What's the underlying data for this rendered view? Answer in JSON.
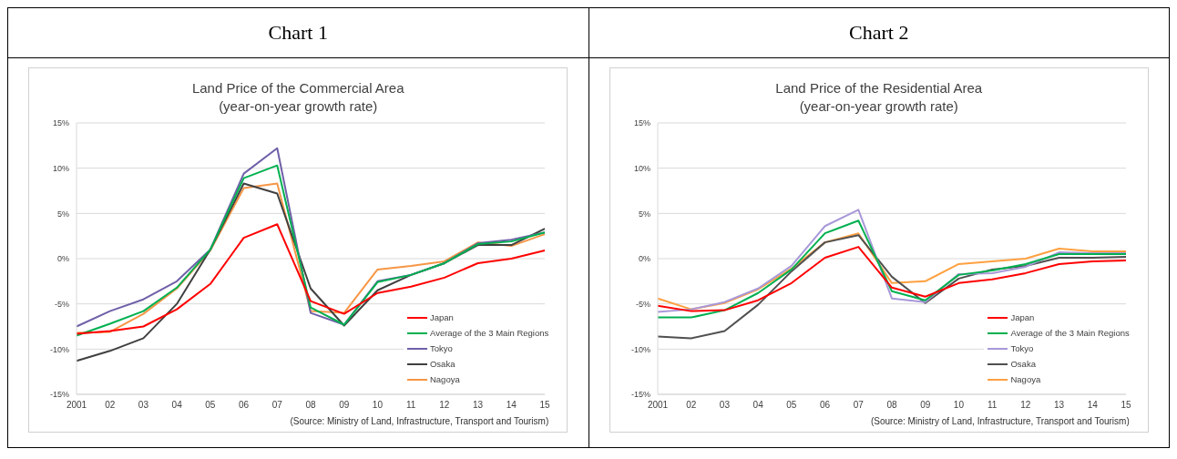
{
  "chart_data": [
    {
      "type": "line",
      "title": "Land Price of  the Commercial Area\n(year-on-year growth rate)",
      "annotations": [
        "Chart 1",
        "(Source: Ministry of Land, Infrastructure, Transport and Tourism)"
      ],
      "categories": [
        "2001",
        "02",
        "03",
        "04",
        "05",
        "06",
        "07",
        "08",
        "09",
        "10",
        "11",
        "12",
        "13",
        "14",
        "15"
      ],
      "series": [
        {
          "name": "Japan",
          "color": "#ff0000",
          "values": [
            -8.3,
            -8.0,
            -7.5,
            -5.6,
            -2.8,
            2.3,
            3.8,
            -4.7,
            -6.1,
            -3.8,
            -3.1,
            -2.1,
            -0.5,
            0.0,
            0.9
          ]
        },
        {
          "name": "Average of the 3 Main Regions",
          "color": "#00b050",
          "values": [
            -8.5,
            -7.2,
            -5.8,
            -3.2,
            1.0,
            8.9,
            10.3,
            -5.4,
            -7.3,
            -2.6,
            -1.8,
            -0.5,
            1.6,
            1.9,
            2.9
          ]
        },
        {
          "name": "Tokyo",
          "color": "#7060a8",
          "values": [
            -7.5,
            -5.8,
            -4.5,
            -2.5,
            1.0,
            9.4,
            12.2,
            -6.0,
            -7.3,
            -2.5,
            -1.8,
            -0.5,
            1.7,
            2.1,
            2.9
          ]
        },
        {
          "name": "Osaka",
          "color": "#404040",
          "values": [
            -11.3,
            -10.2,
            -8.8,
            -5.0,
            1.0,
            8.3,
            7.2,
            -3.3,
            -7.4,
            -3.5,
            -1.8,
            -0.5,
            1.5,
            1.5,
            3.3
          ]
        },
        {
          "name": "Nagoya",
          "color": "#f79646",
          "values": [
            -8.2,
            -8.1,
            -6.1,
            -3.3,
            0.9,
            7.8,
            8.3,
            -5.8,
            -6.0,
            -1.2,
            -0.8,
            -0.3,
            1.8,
            1.4,
            2.7
          ]
        }
      ],
      "ylim": [
        -15,
        15
      ],
      "yticks": [
        {
          "value": -15,
          "label": "-15%"
        },
        {
          "value": -10,
          "label": "-10%"
        },
        {
          "value": -5,
          "label": "-5%"
        },
        {
          "value": 0,
          "label": "0%"
        },
        {
          "value": 5,
          "label": "5%"
        },
        {
          "value": 10,
          "label": "10%"
        },
        {
          "value": 15,
          "label": "15%"
        }
      ],
      "grid": "y",
      "legend": "bottom right"
    },
    {
      "type": "line",
      "title": "Land Price of  the Residential Area\n(year-on-year growth rate)",
      "annotations": [
        "Chart 2",
        "(Source: Ministry of Land, Infrastructure, Transport and Tourism)"
      ],
      "categories": [
        "2001",
        "02",
        "03",
        "04",
        "05",
        "06",
        "07",
        "08",
        "09",
        "10",
        "11",
        "12",
        "13",
        "14",
        "15"
      ],
      "series": [
        {
          "name": "Japan",
          "color": "#ff0000",
          "values": [
            -5.2,
            -5.8,
            -5.7,
            -4.6,
            -2.7,
            0.1,
            1.3,
            -3.2,
            -4.2,
            -2.7,
            -2.3,
            -1.6,
            -0.6,
            -0.3,
            -0.2
          ]
        },
        {
          "name": "Average of the 3 Main Regions",
          "color": "#00b050",
          "values": [
            -6.5,
            -6.5,
            -5.7,
            -3.8,
            -1.2,
            2.8,
            4.2,
            -3.6,
            -4.6,
            -1.8,
            -1.3,
            -0.6,
            0.5,
            0.5,
            0.5
          ]
        },
        {
          "name": "Tokyo",
          "color": "#a898d8",
          "values": [
            -5.9,
            -5.6,
            -4.8,
            -3.3,
            -0.8,
            3.6,
            5.4,
            -4.4,
            -4.8,
            -1.7,
            -1.6,
            -0.9,
            0.7,
            0.6,
            0.6
          ]
        },
        {
          "name": "Osaka",
          "color": "#505050",
          "values": [
            -8.6,
            -8.8,
            -8.0,
            -5.1,
            -1.4,
            1.8,
            2.6,
            -2.0,
            -4.9,
            -2.2,
            -1.2,
            -0.8,
            0.1,
            0.1,
            0.2
          ]
        },
        {
          "name": "Nagoya",
          "color": "#ffa040",
          "values": [
            -4.4,
            -5.6,
            -4.9,
            -3.4,
            -1.1,
            1.8,
            2.8,
            -2.7,
            -2.5,
            -0.6,
            -0.3,
            0.0,
            1.1,
            0.8,
            0.8
          ]
        }
      ],
      "ylim": [
        -15,
        15
      ],
      "yticks": [
        {
          "value": -15,
          "label": "-15%"
        },
        {
          "value": -10,
          "label": "-10%"
        },
        {
          "value": -5,
          "label": "-5%"
        },
        {
          "value": 0,
          "label": "0%"
        },
        {
          "value": 5,
          "label": "5%"
        },
        {
          "value": 10,
          "label": "10%"
        },
        {
          "value": 15,
          "label": "15%"
        }
      ],
      "grid": "y",
      "legend": "bottom right"
    }
  ]
}
